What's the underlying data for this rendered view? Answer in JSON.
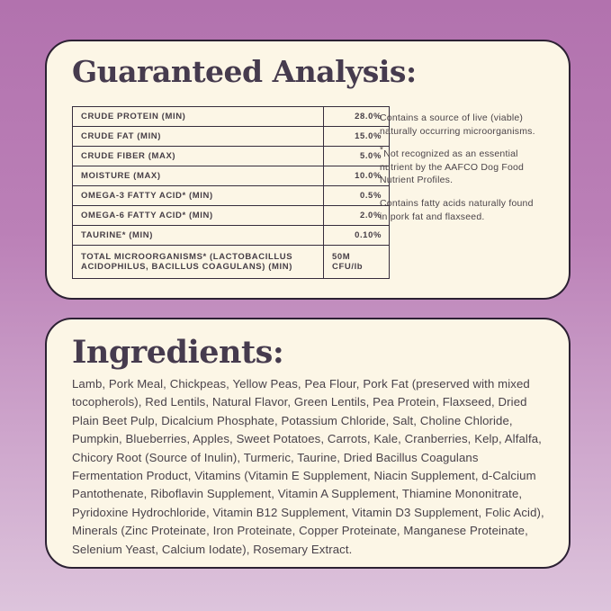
{
  "colors": {
    "background_gradient_top": "#b272ae",
    "background_gradient_bottom": "#ddc4dc",
    "card_background": "#fcf6e6",
    "card_border": "#2c2133",
    "heading_text": "#463b4e",
    "body_text": "#49424a"
  },
  "guaranteed_analysis": {
    "title": "Guaranteed Analysis:",
    "table": {
      "rows": [
        {
          "label": "CRUDE PROTEIN (MIN)",
          "value": "28.0%"
        },
        {
          "label": "CRUDE FAT (MIN)",
          "value": "15.0%"
        },
        {
          "label": "CRUDE FIBER (MAX)",
          "value": "5.0%"
        },
        {
          "label": "MOISTURE (MAX)",
          "value": "10.0%"
        },
        {
          "label": "OMEGA-3 FATTY ACID* (MIN)",
          "value": "0.5%"
        },
        {
          "label": "OMEGA-6 FATTY ACID* (MIN)",
          "value": "2.0%"
        },
        {
          "label": "TAURINE* (MIN)",
          "value": "0.10%"
        },
        {
          "label": "TOTAL MICROORGANISMS* (LACTOBACILLUS ACIDOPHILUS, BACILLUS COAGULANS) (MIN)",
          "value": "50M CFU/lb"
        }
      ]
    },
    "notes": [
      "Contains a source of live (viable) naturally occurring microorganisms.",
      "*Not recognized as an essential nutrient by the AAFCO Dog Food Nutrient Profiles.",
      "Contains fatty acids naturally found in pork fat and flaxseed."
    ]
  },
  "ingredients": {
    "title": "Ingredients:",
    "text": "Lamb, Pork Meal, Chickpeas, Yellow Peas, Pea Flour, Pork Fat (preserved with mixed tocopherols), Red Lentils, Natural Flavor, Green Lentils, Pea Protein, Flaxseed, Dried Plain Beet Pulp, Dicalcium Phosphate, Potassium Chloride, Salt, Choline Chloride, Pumpkin, Blueberries, Apples, Sweet Potatoes, Carrots, Kale, Cranberries, Kelp, Alfalfa, Chicory Root (Source of Inulin), Turmeric, Taurine, Dried Bacillus Coagulans Fermentation Product, Vitamins (Vitamin E Supplement, Niacin Supplement, d-Calcium Pantothenate, Riboflavin Supplement, Vitamin A Supplement, Thiamine Mononitrate, Pyridoxine Hydrochloride, Vitamin B12 Supplement, Vitamin D3 Supplement, Folic Acid), Minerals (Zinc Proteinate, Iron Proteinate, Copper Proteinate, Manganese Proteinate, Selenium Yeast, Calcium Iodate), Rosemary Extract."
  }
}
